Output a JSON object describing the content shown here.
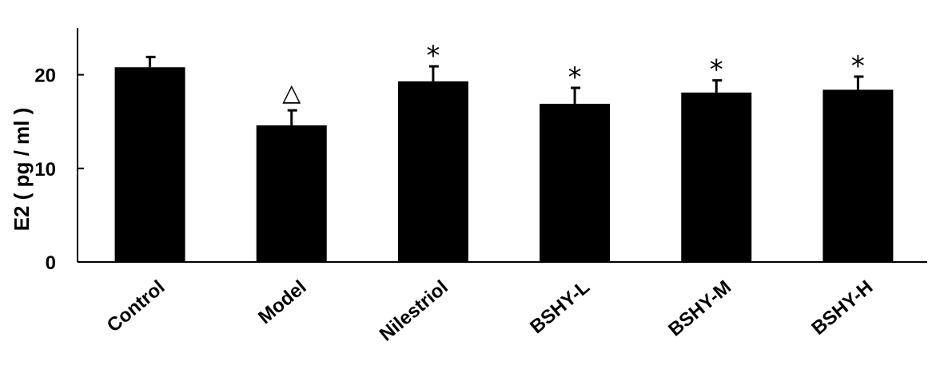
{
  "chart_data": {
    "type": "bar",
    "categories": [
      "Control",
      "Model",
      "Nilestriol",
      "BSHY-L",
      "BSHY-M",
      "BSHY-H"
    ],
    "values": [
      20.8,
      14.6,
      19.3,
      16.9,
      18.1,
      18.4
    ],
    "errors": [
      1.1,
      1.6,
      1.6,
      1.7,
      1.3,
      1.4
    ],
    "markers": [
      "",
      "△",
      "*",
      "*",
      "*",
      "*"
    ],
    "ylabel": "E2 ( pg / ml )",
    "xlabel": "",
    "ylim": [
      0,
      25
    ],
    "yticks": [
      0,
      10,
      20
    ],
    "bar_color": "#000000",
    "grid": false
  }
}
